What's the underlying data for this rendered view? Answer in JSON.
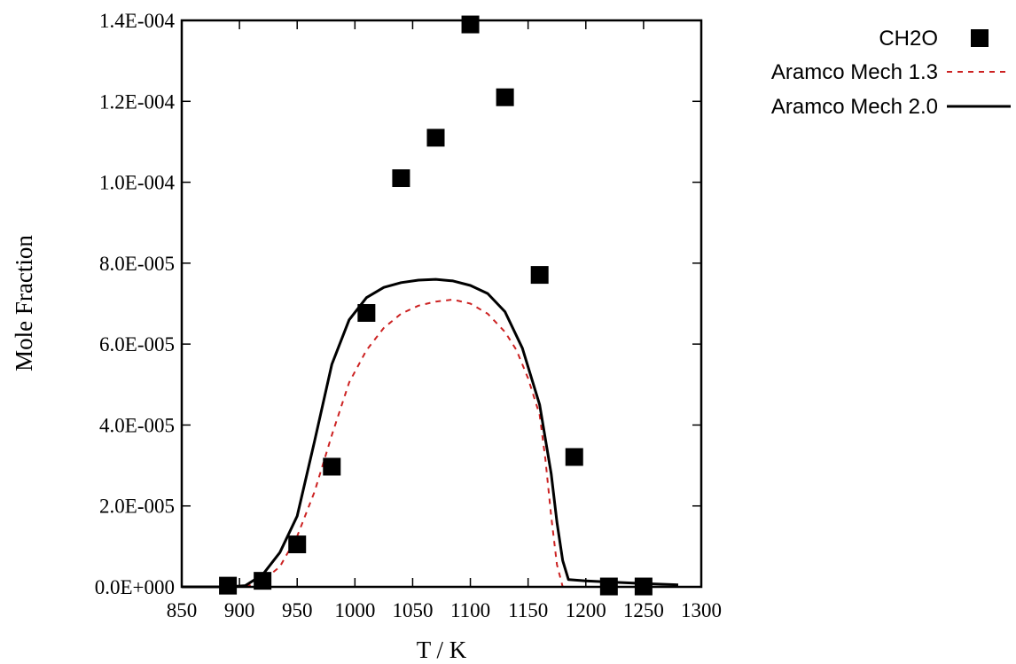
{
  "chart_data": {
    "type": "scatter",
    "title": "",
    "xlabel": "T / K",
    "ylabel": "Mole Fraction",
    "xlim": [
      850,
      1300
    ],
    "ylim": [
      0,
      0.00014
    ],
    "xticks": [
      850,
      900,
      950,
      1000,
      1050,
      1100,
      1150,
      1200,
      1250,
      1300
    ],
    "xtick_labels": [
      "850",
      "900",
      "950",
      "1000",
      "1050",
      "1100",
      "1150",
      "1200",
      "1250",
      "1300"
    ],
    "yticks": [
      0,
      2e-05,
      4e-05,
      6e-05,
      8e-05,
      0.0001,
      0.00012,
      0.00014
    ],
    "ytick_labels": [
      "0.0E+000",
      "2.0E-005",
      "4.0E-005",
      "6.0E-005",
      "8.0E-005",
      "1.0E-004",
      "1.2E-004",
      "1.4E-004"
    ],
    "grid": false,
    "legend_position": "top-right-outside",
    "series": [
      {
        "name": "CH2O",
        "kind": "markers",
        "marker": "square",
        "color": "#000000",
        "x": [
          890,
          920,
          950,
          980,
          1010,
          1040,
          1070,
          1100,
          1130,
          1160,
          1190,
          1220,
          1250
        ],
        "y": [
          3e-07,
          1.5e-06,
          1.05e-05,
          2.97e-05,
          6.77e-05,
          0.000101,
          0.000111,
          0.000139,
          0.000121,
          7.71e-05,
          3.21e-05,
          1e-07,
          1e-07
        ]
      },
      {
        "name": "Aramco Mech 1.3",
        "kind": "line",
        "style": "dashed",
        "color": "#cc2222",
        "x": [
          850,
          870,
          890,
          905,
          920,
          935,
          950,
          965,
          980,
          995,
          1010,
          1025,
          1040,
          1055,
          1070,
          1085,
          1100,
          1115,
          1130,
          1140,
          1150,
          1160,
          1165,
          1170,
          1175,
          1180
        ],
        "y": [
          0,
          0,
          0,
          0,
          1.5e-06,
          5e-06,
          1.25e-05,
          2.35e-05,
          3.75e-05,
          5.05e-05,
          5.85e-05,
          6.4e-05,
          6.75e-05,
          6.95e-05,
          7.05e-05,
          7.1e-05,
          7e-05,
          6.75e-05,
          6.3e-05,
          5.85e-05,
          5.15e-05,
          4.25e-05,
          3.15e-05,
          1.75e-05,
          5.5e-06,
          0
        ]
      },
      {
        "name": "Aramco Mech 2.0",
        "kind": "line",
        "style": "solid",
        "color": "#000000",
        "x": [
          850,
          870,
          890,
          905,
          920,
          935,
          950,
          965,
          980,
          995,
          1010,
          1025,
          1040,
          1055,
          1070,
          1085,
          1100,
          1115,
          1130,
          1145,
          1160,
          1170,
          1175,
          1180,
          1185,
          1200,
          1220,
          1250,
          1280
        ],
        "y": [
          0,
          0,
          0,
          3e-07,
          3e-06,
          8.5e-06,
          1.75e-05,
          3.6e-05,
          5.5e-05,
          6.6e-05,
          7.15e-05,
          7.4e-05,
          7.52e-05,
          7.58e-05,
          7.6e-05,
          7.56e-05,
          7.45e-05,
          7.25e-05,
          6.8e-05,
          5.9e-05,
          4.5e-05,
          2.8e-05,
          1.6e-05,
          6.5e-06,
          1.8e-06,
          1.5e-06,
          1.2e-06,
          8e-07,
          5e-07
        ]
      }
    ]
  }
}
